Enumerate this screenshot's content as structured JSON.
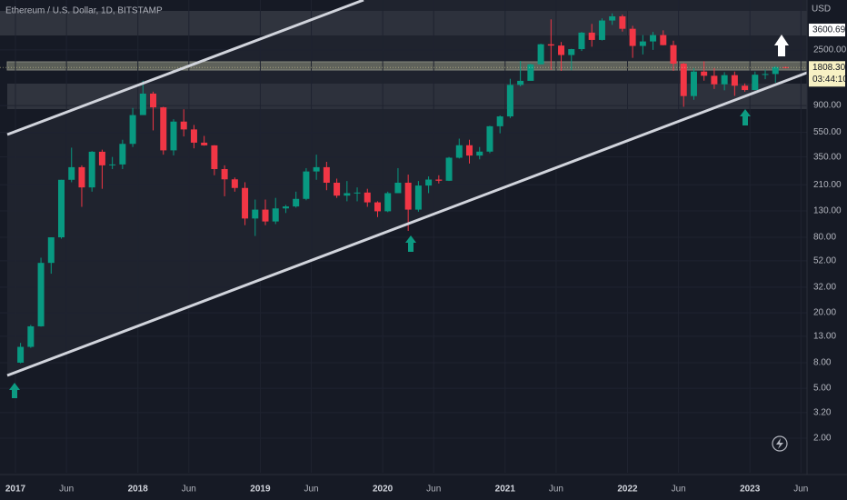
{
  "chart_data": {
    "type": "candlestick",
    "title": "Ethereum / U.S. Dollar, 1D, BITSTAMP",
    "currency": "USD",
    "log_scale": true,
    "up_color": "#089981",
    "down_color": "#f23645",
    "x": [
      "2017-01",
      "2017-02",
      "2017-03",
      "2017-04",
      "2017-05",
      "2017-06",
      "2017-07",
      "2017-08",
      "2017-09",
      "2017-10",
      "2017-11",
      "2017-12",
      "2018-01",
      "2018-02",
      "2018-03",
      "2018-04",
      "2018-05",
      "2018-06",
      "2018-07",
      "2018-08",
      "2018-09",
      "2018-10",
      "2018-11",
      "2018-12",
      "2019-01",
      "2019-02",
      "2019-03",
      "2019-04",
      "2019-05",
      "2019-06",
      "2019-07",
      "2019-08",
      "2019-09",
      "2019-10",
      "2019-11",
      "2019-12",
      "2020-01",
      "2020-02",
      "2020-03",
      "2020-04",
      "2020-05",
      "2020-06",
      "2020-07",
      "2020-08",
      "2020-09",
      "2020-10",
      "2020-11",
      "2020-12",
      "2021-01",
      "2021-02",
      "2021-03",
      "2021-04",
      "2021-05",
      "2021-06",
      "2021-07",
      "2021-08",
      "2021-09",
      "2021-10",
      "2021-11",
      "2021-12",
      "2022-01",
      "2022-02",
      "2022-03",
      "2022-04",
      "2022-05",
      "2022-06",
      "2022-07",
      "2022-08",
      "2022-09",
      "2022-10",
      "2022-11",
      "2022-12",
      "2023-01",
      "2023-02",
      "2023-03",
      "2023-04"
    ],
    "open": [
      8,
      10.7,
      15.6,
      50,
      80,
      230,
      290,
      200,
      385,
      300,
      305,
      445,
      755,
      1120,
      870,
      395,
      670,
      580,
      455,
      433,
      280,
      232,
      198,
      113,
      133,
      107,
      136,
      141,
      162,
      268,
      290,
      218,
      172,
      180,
      182,
      152,
      129,
      180,
      218,
      133,
      207,
      231,
      226,
      345,
      434,
      359,
      386,
      615,
      737,
      1314,
      1416,
      1918,
      2772,
      2707,
      2275,
      2536,
      3433,
      3001,
      4288,
      4631,
      3683,
      2688,
      2920,
      3283,
      2728,
      1942,
      1071,
      1680,
      1554,
      1328,
      1572,
      1295,
      1196,
      1585,
      1605,
      1822
    ],
    "high": [
      11.5,
      16,
      55,
      80,
      230,
      415,
      300,
      390,
      400,
      350,
      480,
      860,
      1420,
      1160,
      880,
      700,
      840,
      630,
      515,
      435,
      300,
      240,
      220,
      160,
      160,
      165,
      145,
      185,
      285,
      365,
      320,
      235,
      225,
      200,
      195,
      155,
      185,
      285,
      253,
      225,
      245,
      250,
      350,
      490,
      480,
      420,
      620,
      750,
      1470,
      2040,
      1940,
      2800,
      4380,
      2890,
      2550,
      3470,
      4030,
      4460,
      4890,
      4780,
      3890,
      3280,
      3480,
      3580,
      2960,
      1970,
      1790,
      2030,
      1790,
      1660,
      1680,
      1350,
      1680,
      1740,
      1860,
      1840
    ],
    "low": [
      7.9,
      10.5,
      15.5,
      41,
      78,
      220,
      140,
      185,
      195,
      280,
      280,
      420,
      760,
      570,
      365,
      360,
      510,
      410,
      430,
      250,
      170,
      185,
      100,
      82,
      100,
      102,
      125,
      138,
      158,
      230,
      190,
      165,
      155,
      155,
      140,
      116,
      127,
      180,
      90,
      128,
      180,
      215,
      225,
      340,
      310,
      335,
      375,
      540,
      715,
      1280,
      1440,
      1920,
      1730,
      1700,
      1720,
      2450,
      2650,
      2970,
      3960,
      3500,
      2160,
      2300,
      2500,
      2720,
      1700,
      880,
      1000,
      1420,
      1220,
      1190,
      1075,
      1160,
      1190,
      1460,
      1370,
      1780
    ],
    "close": [
      10.7,
      15.6,
      50,
      80,
      230,
      290,
      200,
      385,
      300,
      305,
      445,
      755,
      1120,
      870,
      395,
      670,
      580,
      455,
      433,
      280,
      232,
      198,
      113,
      133,
      107,
      136,
      141,
      162,
      268,
      290,
      218,
      172,
      180,
      182,
      152,
      129,
      180,
      218,
      133,
      207,
      231,
      226,
      345,
      434,
      359,
      386,
      615,
      737,
      1314,
      1416,
      1918,
      2772,
      2707,
      2275,
      2536,
      3433,
      3001,
      4288,
      4631,
      3683,
      2688,
      2920,
      3283,
      2728,
      1942,
      1071,
      1680,
      1554,
      1328,
      1572,
      1295,
      1196,
      1585,
      1605,
      1822,
      1808.3
    ],
    "ylim": [
      1.06,
      6250
    ],
    "yticks": [
      {
        "value": 2,
        "label": "2.00"
      },
      {
        "value": 3.2,
        "label": "3.20"
      },
      {
        "value": 5,
        "label": "5.00"
      },
      {
        "value": 8,
        "label": "8.00"
      },
      {
        "value": 13,
        "label": "13.00"
      },
      {
        "value": 20,
        "label": "20.00"
      },
      {
        "value": 32,
        "label": "32.00"
      },
      {
        "value": 52,
        "label": "52.00"
      },
      {
        "value": 80,
        "label": "80.00"
      },
      {
        "value": 130,
        "label": "130.00"
      },
      {
        "value": 210,
        "label": "210.00"
      },
      {
        "value": 350,
        "label": "350.00"
      },
      {
        "value": 550,
        "label": "550.00"
      },
      {
        "value": 900,
        "label": "900.00"
      },
      {
        "value": 2500,
        "label": "2500.00"
      }
    ],
    "xticks": [
      {
        "value": "2017-01",
        "label": "2017"
      },
      {
        "value": "2017-06",
        "label": "Jun"
      },
      {
        "value": "2018-01",
        "label": "2018"
      },
      {
        "value": "2018-06",
        "label": "Jun"
      },
      {
        "value": "2019-01",
        "label": "2019"
      },
      {
        "value": "2019-06",
        "label": "Jun"
      },
      {
        "value": "2020-01",
        "label": "2020"
      },
      {
        "value": "2020-06",
        "label": "Jun"
      },
      {
        "value": "2021-01",
        "label": "2021"
      },
      {
        "value": "2021-06",
        "label": "Jun"
      },
      {
        "value": "2022-01",
        "label": "2022"
      },
      {
        "value": "2022-06",
        "label": "Jun"
      },
      {
        "value": "2023-01",
        "label": "2023"
      },
      {
        "value": "2023-06",
        "label": "Jun"
      }
    ],
    "last_price": {
      "value": 1808.3,
      "label": "1808.30"
    },
    "countdown": "03:44:10",
    "marker_price": {
      "value": 3600.69,
      "label": "3600.69"
    }
  }
}
